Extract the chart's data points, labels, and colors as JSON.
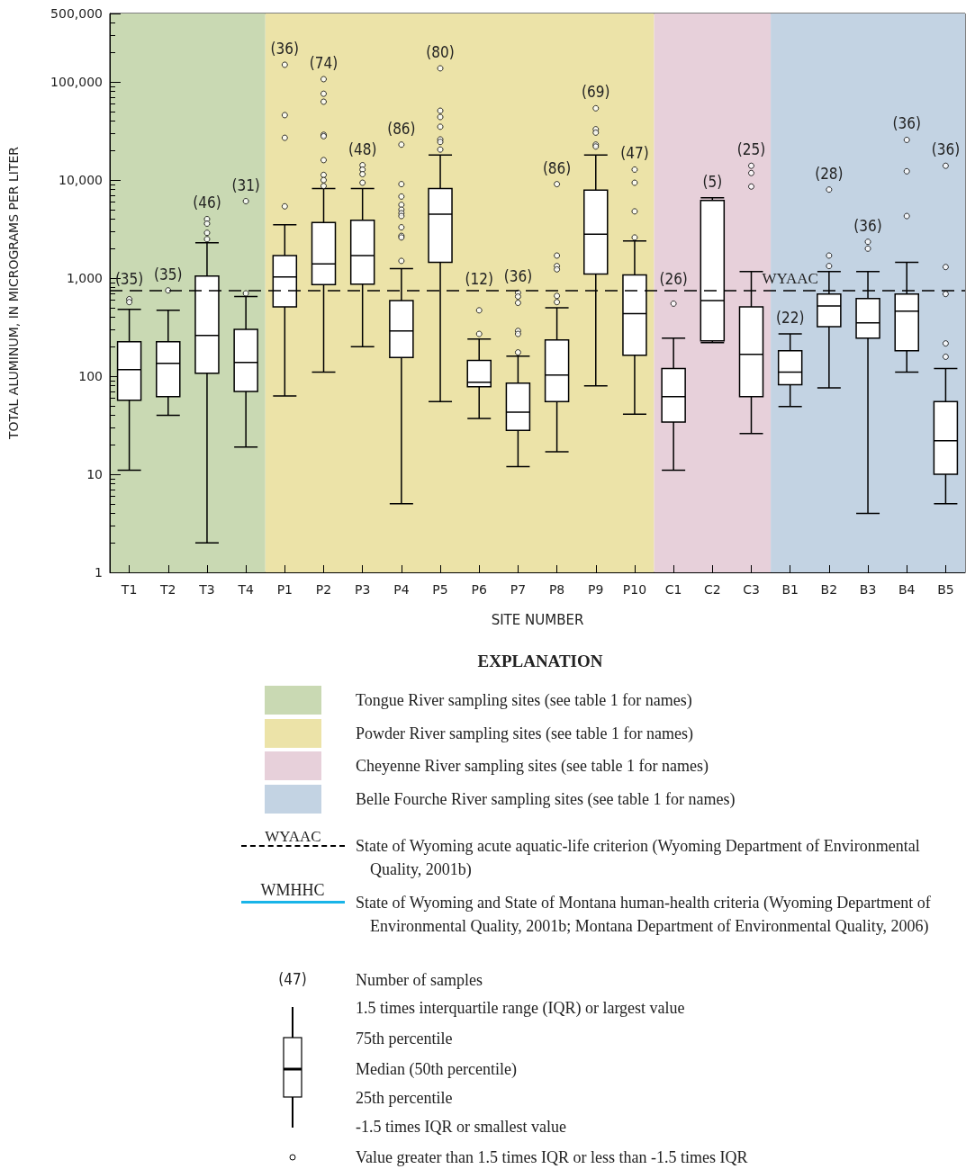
{
  "chart_data": {
    "type": "box",
    "xlabel": "SITE NUMBER",
    "ylabel": "TOTAL ALUMINUM, IN MICROGRAMS PER LITER",
    "legend_title": "EXPLANATION",
    "categories": [
      "T1",
      "T2",
      "T3",
      "T4",
      "P1",
      "P2",
      "P3",
      "P4",
      "P5",
      "P6",
      "P7",
      "P8",
      "P9",
      "P10",
      "C1",
      "C2",
      "C3",
      "B1",
      "B2",
      "B3",
      "B4",
      "B5"
    ],
    "log": "y",
    "ylim": [
      1,
      500000
    ],
    "yticks": [
      1,
      10,
      100,
      {
        "value": 1000,
        "label": "1,000"
      },
      {
        "value": 10000,
        "label": "10,000"
      },
      {
        "value": 100000,
        "label": "100,000"
      },
      {
        "value": 500000,
        "label": "500,000"
      }
    ],
    "grid": false,
    "legend": "bottom",
    "series": [
      {
        "color": "#000000",
        "boxes": [
          {
            "low": 11,
            "q1": 57,
            "median": 117,
            "q3": 225,
            "high": 480,
            "outliers": [
              610,
              570
            ]
          },
          {
            "low": 40,
            "q1": 62,
            "median": 135,
            "q3": 225,
            "high": 470,
            "outliers": [
              750
            ]
          },
          {
            "low": 2,
            "q1": 107,
            "median": 260,
            "q3": 1050,
            "high": 2300,
            "outliers": [
              4000,
              3600,
              2900,
              2500
            ]
          },
          {
            "low": 19,
            "q1": 70,
            "median": 138,
            "q3": 300,
            "high": 650,
            "outliers": [
              6100,
              700
            ]
          },
          {
            "low": 63,
            "q1": 510,
            "median": 1030,
            "q3": 1700,
            "high": 3500,
            "outliers": [
              150000,
              46000,
              27000,
              5400
            ]
          },
          {
            "low": 110,
            "q1": 860,
            "median": 1400,
            "q3": 3700,
            "high": 8200,
            "outliers": [
              107000,
              76000,
              63000,
              29000,
              28000,
              16000,
              11300,
              10000,
              8700
            ]
          },
          {
            "low": 200,
            "q1": 870,
            "median": 1700,
            "q3": 3900,
            "high": 8200,
            "outliers": [
              14200,
              12800,
              11500,
              9400
            ]
          },
          {
            "low": 5,
            "q1": 155,
            "median": 290,
            "q3": 590,
            "high": 1250,
            "outliers": [
              23000,
              9100,
              6800,
              5600,
              5000,
              4600,
              4300,
              3300,
              2700,
              2600,
              1500
            ]
          },
          {
            "low": 55,
            "q1": 1450,
            "median": 4500,
            "q3": 8200,
            "high": 18000,
            "outliers": [
              138000,
              51000,
              44000,
              35000,
              26000,
              24500,
              20500
            ]
          },
          {
            "low": 37,
            "q1": 78,
            "median": 87,
            "q3": 145,
            "high": 240,
            "outliers": [
              470,
              270
            ]
          },
          {
            "low": 12,
            "q1": 28,
            "median": 43,
            "q3": 85,
            "high": 160,
            "outliers": [
              710,
              650,
              560,
              290,
              270,
              175
            ]
          },
          {
            "low": 17,
            "q1": 55,
            "median": 103,
            "q3": 235,
            "high": 500,
            "outliers": [
              9100,
              1700,
              1330,
              1230,
              660,
              570
            ]
          },
          {
            "low": 80,
            "q1": 1100,
            "median": 2800,
            "q3": 7900,
            "high": 18000,
            "outliers": [
              54000,
              33000,
              30500,
              23000,
              22000
            ]
          },
          {
            "low": 41,
            "q1": 164,
            "median": 435,
            "q3": 1080,
            "high": 2400,
            "outliers": [
              12800,
              9400,
              4800,
              2600
            ]
          },
          {
            "low": 11,
            "q1": 34,
            "median": 62,
            "q3": 120,
            "high": 245,
            "outliers": [
              550
            ]
          },
          {
            "low": 220,
            "q1": 230,
            "median": 590,
            "q3": 6200,
            "high": 6600
          },
          {
            "low": 26,
            "q1": 62,
            "median": 167,
            "q3": 510,
            "high": 1170,
            "outliers": [
              14000,
              11800,
              8600
            ]
          },
          {
            "low": 49,
            "q1": 82,
            "median": 110,
            "q3": 182,
            "high": 270
          },
          {
            "low": 76,
            "q1": 320,
            "median": 520,
            "q3": 690,
            "high": 1170,
            "outliers": [
              8000,
              1700,
              1330
            ]
          },
          {
            "low": 4,
            "q1": 245,
            "median": 350,
            "q3": 620,
            "high": 1170,
            "outliers": [
              2350,
              2000
            ]
          },
          {
            "low": 110,
            "q1": 182,
            "median": 460,
            "q3": 690,
            "high": 1450,
            "outliers": [
              25700,
              12300,
              4300
            ]
          },
          {
            "low": 5,
            "q1": 10,
            "median": 22,
            "q3": 55,
            "high": 120,
            "outliers": [
              14000,
              1300,
              690,
              216,
              158
            ]
          }
        ]
      }
    ],
    "bands": [
      {
        "axis": "x",
        "from": "T1",
        "to": "T4",
        "color": "#c9d9b3",
        "label": "Tongue River sampling sites (see table 1 for names)"
      },
      {
        "axis": "x",
        "from": "P1",
        "to": "P10",
        "color": "#ece3a8",
        "label": "Powder River sampling sites (see table 1 for names)"
      },
      {
        "axis": "x",
        "from": "C1",
        "to": "C3",
        "color": "#e7d0da",
        "label": "Cheyenne River sampling sites (see table 1 for names)"
      },
      {
        "axis": "x",
        "from": "B1",
        "to": "B5",
        "color": "#c3d3e3",
        "label": "Belle Fourche River sampling sites (see table 1 for names)"
      }
    ],
    "ref_lines": [
      {
        "axis": "y",
        "value": 750,
        "label": "WYAAC",
        "color": "#000000",
        "line_style": "dashed"
      }
    ],
    "annotations": [
      "(35)",
      "(35)",
      "(46)",
      "(31)",
      "(36)",
      "(74)",
      "(48)",
      "(86)",
      "(80)",
      "(12)",
      "(36)",
      "(86)",
      "(69)",
      "(47)",
      "(26)",
      "(5)",
      "(25)",
      "(22)",
      "(28)",
      "(36)",
      "(36)",
      "(36)",
      "State of Wyoming acute aquatic-life criterion (Wyoming Department of Environmental Quality, 2001b)",
      "WMHHC",
      "State of Wyoming and State of Montana human-health criteria (Wyoming Department of Environmental Quality, 2001b; Montana Department of Environmental Quality, 2006)",
      "(47)",
      "Number of samples",
      "1.5 times interquartile range (IQR) or largest value",
      "75th percentile",
      "Median (50th percentile)",
      "25th percentile",
      "-1.5 times IQR or smallest value",
      "Value greater than 1.5 times IQR or less than -1.5 times IQR"
    ]
  }
}
